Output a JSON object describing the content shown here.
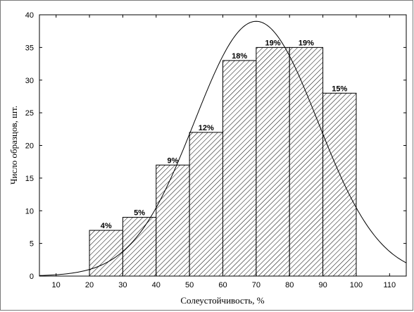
{
  "chart_data": {
    "type": "bar",
    "bins": [
      {
        "x0": 20,
        "x1": 30,
        "value": 7,
        "label": "4%"
      },
      {
        "x0": 30,
        "x1": 40,
        "value": 9,
        "label": "5%"
      },
      {
        "x0": 40,
        "x1": 50,
        "value": 17,
        "label": "9%"
      },
      {
        "x0": 50,
        "x1": 60,
        "value": 22,
        "label": "12%"
      },
      {
        "x0": 60,
        "x1": 70,
        "value": 33,
        "label": "18%"
      },
      {
        "x0": 70,
        "x1": 80,
        "value": 35,
        "label": "19%"
      },
      {
        "x0": 80,
        "x1": 90,
        "value": 35,
        "label": "19%"
      },
      {
        "x0": 90,
        "x1": 100,
        "value": 28,
        "label": "15%"
      }
    ],
    "fit_curve": {
      "type": "normal",
      "mean": 70,
      "sd": 18.5,
      "peak": 39
    },
    "xlabel": "Солеустойчивость, %",
    "ylabel": "Число образцов, шт.",
    "xlim": [
      5,
      115
    ],
    "ylim": [
      0,
      40
    ],
    "xticks": [
      10,
      20,
      30,
      40,
      50,
      60,
      70,
      80,
      90,
      100,
      110
    ],
    "yticks": [
      0,
      5,
      10,
      15,
      20,
      25,
      30,
      35,
      40
    ],
    "grid": false,
    "bar_pattern": "diagonal-hatch",
    "colors": {
      "bar_fill": "#ffffff",
      "hatch": "#000000",
      "outline": "#000000",
      "curve": "#000000"
    }
  }
}
